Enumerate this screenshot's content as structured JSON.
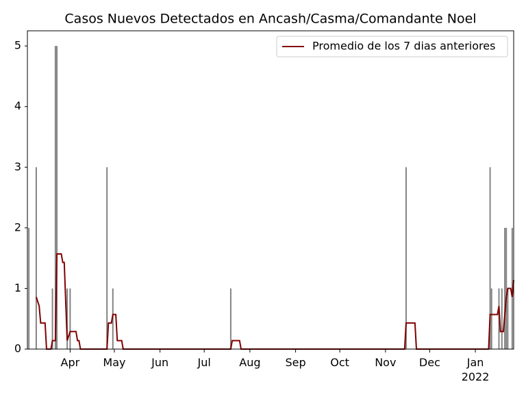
{
  "chart_data": {
    "type": "combo",
    "title": "Casos Nuevos Detectados en Ancash/Casma/Comandante Noel",
    "xlim": [
      2,
      332
    ],
    "xticks": [
      {
        "value": 31,
        "label": "Apr"
      },
      {
        "value": 61,
        "label": "May"
      },
      {
        "value": 92,
        "label": "Jun"
      },
      {
        "value": 122,
        "label": "Jul"
      },
      {
        "value": 153,
        "label": "Aug"
      },
      {
        "value": 184,
        "label": "Sep"
      },
      {
        "value": 214,
        "label": "Oct"
      },
      {
        "value": 245,
        "label": "Nov"
      },
      {
        "value": 275,
        "label": "Dec"
      },
      {
        "value": 306,
        "label": "Jan\n2022"
      }
    ],
    "ylim": [
      0,
      5.25
    ],
    "yticks": [
      0,
      1,
      2,
      3,
      4,
      5
    ],
    "legend": "upper right",
    "series": [
      {
        "type": "bar",
        "color": "#808080",
        "x": [
          3,
          8,
          19,
          21,
          22,
          29,
          31,
          56,
          60,
          140,
          259,
          316,
          317,
          322,
          324,
          326,
          327,
          328,
          331
        ],
        "values": [
          2,
          3,
          1,
          5,
          5,
          1,
          1,
          3,
          1,
          1,
          3,
          3,
          1,
          1,
          1,
          2,
          2,
          1,
          2
        ]
      },
      {
        "type": "line",
        "name": "Promedio de los 7 dias anteriores",
        "color": "#800000",
        "x": [
          8,
          10,
          11,
          14,
          15,
          18,
          19,
          21,
          22,
          25,
          26,
          27,
          29,
          31,
          35,
          36,
          37,
          38,
          56,
          57,
          59,
          60,
          62,
          63,
          66,
          67,
          140,
          141,
          146,
          147,
          258,
          259,
          265,
          266,
          315,
          316,
          321,
          322,
          323,
          325,
          327,
          328,
          330,
          331,
          332
        ],
        "values": [
          0.86,
          0.71,
          0.43,
          0.43,
          0,
          0,
          0.14,
          0.14,
          1.57,
          1.57,
          1.43,
          1.43,
          0.14,
          0.29,
          0.29,
          0.14,
          0.14,
          0,
          0,
          0.43,
          0.43,
          0.57,
          0.57,
          0.14,
          0.14,
          0,
          0,
          0.14,
          0.14,
          0,
          0,
          0.43,
          0.43,
          0,
          0,
          0.57,
          0.57,
          0.71,
          0.29,
          0.29,
          0.86,
          1,
          1,
          0.86,
          1.14
        ]
      }
    ]
  }
}
